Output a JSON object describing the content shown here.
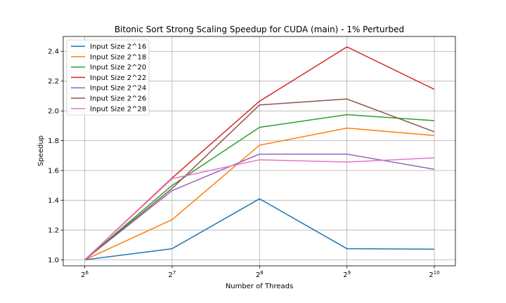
{
  "chart_data": {
    "type": "line",
    "title": "Bitonic Sort Strong Scaling Speedup for CUDA (main) - 1% Perturbed",
    "xlabel": "Number of Threads",
    "ylabel": "Speedup",
    "x_tick_labels": [
      {
        "base": "2",
        "exp": "6"
      },
      {
        "base": "2",
        "exp": "7"
      },
      {
        "base": "2",
        "exp": "8"
      },
      {
        "base": "2",
        "exp": "9"
      },
      {
        "base": "2",
        "exp": "10"
      }
    ],
    "x": [
      64,
      128,
      256,
      512,
      1024
    ],
    "x_scale": "log2",
    "xlim": [
      54,
      1210
    ],
    "ylim": [
      0.96,
      2.5
    ],
    "y_ticks": [
      1.0,
      1.2,
      1.4,
      1.6,
      1.8,
      2.0,
      2.2,
      2.4
    ],
    "y_tick_labels": [
      "1.0",
      "1.2",
      "1.4",
      "1.6",
      "1.8",
      "2.0",
      "2.2",
      "2.4"
    ],
    "grid": true,
    "legend": "top-left",
    "series": [
      {
        "name": "Input Size 2^16",
        "color": "#1f77b4",
        "values": [
          1.0,
          1.075,
          1.41,
          1.075,
          1.072
        ]
      },
      {
        "name": "Input Size 2^18",
        "color": "#ff7f0e",
        "values": [
          1.0,
          1.27,
          1.77,
          1.885,
          1.835
        ]
      },
      {
        "name": "Input Size 2^20",
        "color": "#2ca02c",
        "values": [
          1.0,
          1.5,
          1.89,
          1.975,
          1.935
        ]
      },
      {
        "name": "Input Size 2^22",
        "color": "#d62728",
        "values": [
          1.0,
          1.55,
          2.065,
          2.43,
          2.145
        ]
      },
      {
        "name": "Input Size 2^24",
        "color": "#9467bd",
        "values": [
          1.0,
          1.465,
          1.71,
          1.71,
          1.608
        ]
      },
      {
        "name": "Input Size 2^26",
        "color": "#8c564b",
        "values": [
          1.0,
          1.48,
          2.04,
          2.08,
          1.86
        ]
      },
      {
        "name": "Input Size 2^28",
        "color": "#e377c2",
        "values": [
          1.0,
          1.545,
          1.672,
          1.657,
          1.685
        ]
      }
    ]
  }
}
